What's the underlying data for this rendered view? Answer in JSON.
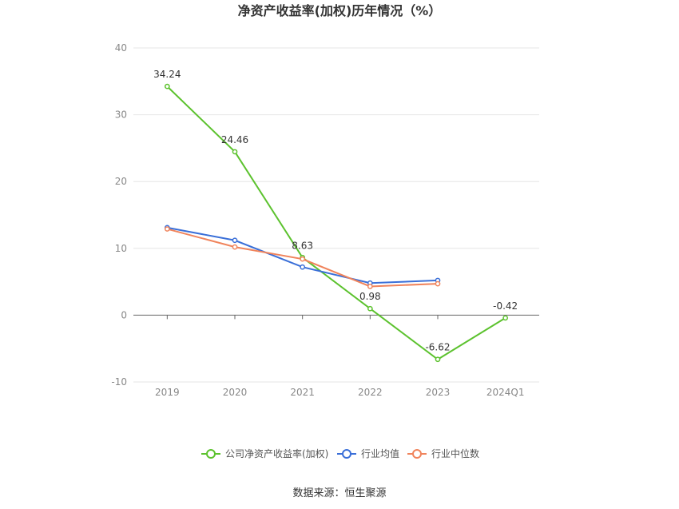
{
  "chart_data": {
    "type": "line",
    "title": "净资产收益率(加权)历年情况（%）",
    "categories": [
      "2019",
      "2020",
      "2021",
      "2022",
      "2023",
      "2024Q1"
    ],
    "ylim": [
      -10,
      40
    ],
    "yticks": [
      -10,
      0,
      10,
      20,
      30,
      40
    ],
    "grid": true,
    "legend_position": "bottom",
    "series": [
      {
        "name": "公司净资产收益率(加权)",
        "color": "#5cc22e",
        "values": [
          34.24,
          24.46,
          8.63,
          0.98,
          -6.62,
          -0.42
        ],
        "labels": [
          "34.24",
          "24.46",
          "8.63",
          "0.98",
          "-6.62",
          "-0.42"
        ]
      },
      {
        "name": "行业均值",
        "color": "#3a6fd8",
        "values": [
          13.1,
          11.2,
          7.2,
          4.8,
          5.2,
          null
        ]
      },
      {
        "name": "行业中位数",
        "color": "#f0845c",
        "values": [
          12.9,
          10.2,
          8.4,
          4.3,
          4.7,
          null
        ]
      }
    ]
  },
  "source_text": "数据来源：恒生聚源"
}
